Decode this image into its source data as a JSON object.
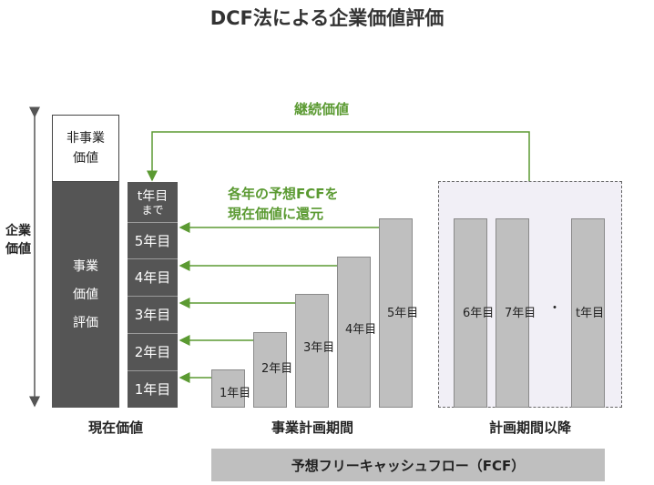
{
  "title": "DCF法による企業価値評価",
  "enterprise_value_label": [
    "企業",
    "価値"
  ],
  "non_business_value": [
    "非事業",
    "価値"
  ],
  "business_value": [
    "事業",
    "価値",
    "評価"
  ],
  "pv_column": {
    "t_label": "t年目",
    "t_sub": "まで",
    "years": [
      "5年目",
      "4年目",
      "3年目",
      "2年目",
      "1年目"
    ]
  },
  "annotations": {
    "terminal_value": "継続価値",
    "discount_line1": "各年の予想FCFを",
    "discount_line2": "現在価値に還元"
  },
  "plan_bars": [
    "1年目",
    "2年目",
    "3年目",
    "4年目",
    "5年目"
  ],
  "post_plan_bars": [
    "6年目",
    "7年目",
    "t年目"
  ],
  "ellipsis": "・",
  "section_labels": {
    "present_value": "現在価値",
    "plan_period": "事業計画期間",
    "post_plan": "計画期間以降"
  },
  "fcf_band": "予想フリーキャッシュフロー（FCF）",
  "colors": {
    "dark": "#555555",
    "bar": "#bfbfbf",
    "green": "#5b9a32",
    "dashed_bg": "#f1eff6"
  }
}
